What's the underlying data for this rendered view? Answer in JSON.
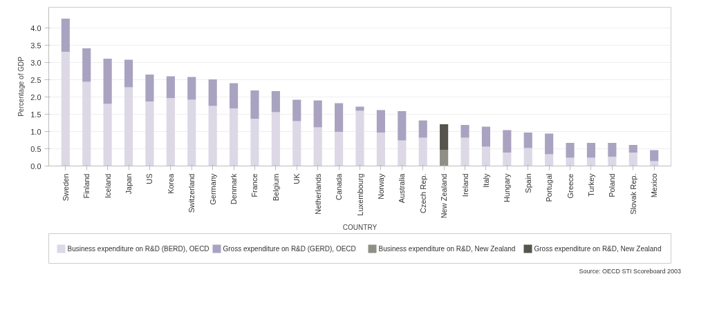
{
  "chart_data": {
    "type": "bar",
    "stacked": true,
    "xlabel": "COUNTRY",
    "ylabel": "Percentage of GDP",
    "categories": [
      "Sweden",
      "Finland",
      "Iceland",
      "Japan",
      "US",
      "Korea",
      "Switzerland",
      "Germany",
      "Denmark",
      "France",
      "Belgium",
      "UK",
      "Netherlands",
      "Canada",
      "Luxembourg",
      "Norway",
      "Australia",
      "Czech Rep.",
      "New Zealand",
      "Ireland",
      "Italy",
      "Hungary",
      "Spain",
      "Portugal",
      "Greece",
      "Turkey",
      "Poland",
      "Slovak Rep.",
      "Mexico"
    ],
    "series": [
      {
        "name": "Business expenditure on R&D (BERD), OECD",
        "color": "#dcd8e6",
        "values": [
          3.31,
          2.44,
          1.8,
          2.28,
          1.87,
          1.97,
          1.92,
          1.74,
          1.67,
          1.37,
          1.56,
          1.3,
          1.12,
          0.99,
          1.6,
          0.97,
          0.74,
          0.82,
          null,
          0.82,
          0.56,
          0.39,
          0.52,
          0.34,
          0.24,
          0.24,
          0.27,
          0.39,
          0.14
        ]
      },
      {
        "name": "Gross expenditure on R&D (GERD), OECD",
        "color": "#a9a3c1",
        "values": [
          0.96,
          0.97,
          1.31,
          0.8,
          0.78,
          0.63,
          0.66,
          0.77,
          0.73,
          0.82,
          0.61,
          0.62,
          0.78,
          0.83,
          0.12,
          0.65,
          0.85,
          0.5,
          null,
          0.37,
          0.58,
          0.65,
          0.45,
          0.6,
          0.43,
          0.43,
          0.4,
          0.22,
          0.32
        ]
      },
      {
        "name": "Business expenditure on R&D, New Zealand",
        "color": "#8f8f85",
        "values": [
          null,
          null,
          null,
          null,
          null,
          null,
          null,
          null,
          null,
          null,
          null,
          null,
          null,
          null,
          null,
          null,
          null,
          null,
          0.46,
          null,
          null,
          null,
          null,
          null,
          null,
          null,
          null,
          null,
          null
        ]
      },
      {
        "name": "Gross expenditure on R&D, New Zealand",
        "color": "#56544c",
        "values": [
          null,
          null,
          null,
          null,
          null,
          null,
          null,
          null,
          null,
          null,
          null,
          null,
          null,
          null,
          null,
          null,
          null,
          null,
          0.75,
          null,
          null,
          null,
          null,
          null,
          null,
          null,
          null,
          null,
          null
        ]
      }
    ],
    "ylim": [
      0,
      4.6
    ],
    "yticks": [
      {
        "value": 0,
        "label": "0.0"
      },
      {
        "value": 0.5,
        "label": "0.5"
      },
      {
        "value": 1,
        "label": "1.0"
      },
      {
        "value": 1.5,
        "label": "1.5"
      },
      {
        "value": 2,
        "label": "2.0"
      },
      {
        "value": 2.5,
        "label": "2.5"
      },
      {
        "value": 3,
        "label": "3.0"
      },
      {
        "value": 3.5,
        "label": "3.5"
      },
      {
        "value": 4,
        "label": "4.0"
      }
    ],
    "grid": "y",
    "legend": "bottom",
    "annotations": [
      "Source: OECD STI Scoreboard 2003"
    ]
  }
}
